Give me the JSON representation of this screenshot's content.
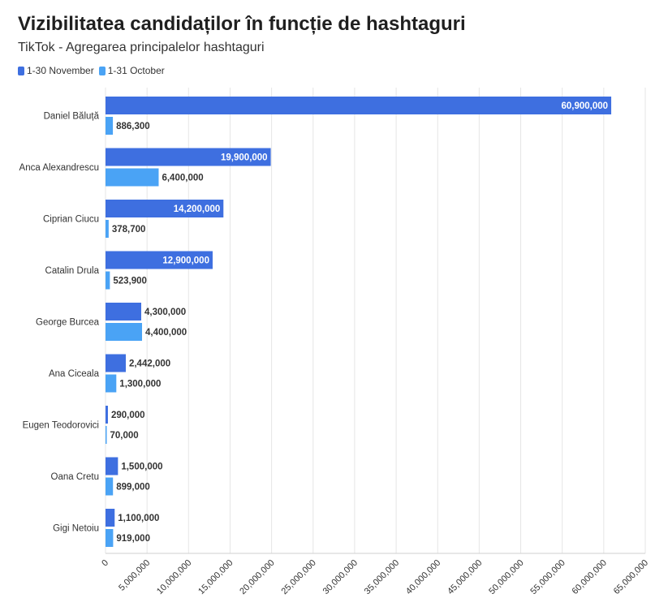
{
  "header": {
    "title": "Vizibilitatea candidaților în funcție de hashtaguri",
    "subtitle": "TikTok - Agregarea principalelor hashtaguri"
  },
  "colors": {
    "november": "#3e6fe0",
    "october": "#4aa3f5",
    "grid": "#e6e6e6"
  },
  "chart_data": {
    "type": "bar",
    "orientation": "horizontal",
    "title": "Vizibilitatea candidaților în funcție de hashtaguri",
    "subtitle": "TikTok - Agregarea principalelor hashtaguri",
    "categories": [
      "Daniel Băluță",
      "Anca Alexandrescu",
      "Ciprian Ciucu",
      "Catalin Drula",
      "George Burcea",
      "Ana Ciceala",
      "Eugen Teodorovici",
      "Oana Cretu",
      "Gigi Netoiu"
    ],
    "series": [
      {
        "name": "1-30 November",
        "values": [
          60900000,
          19900000,
          14200000,
          12900000,
          4300000,
          2442000,
          290000,
          1500000,
          1100000
        ],
        "labels": [
          "60,900,000",
          "19,900,000",
          "14,200,000",
          "12,900,000",
          "4,300,000",
          "2,442,000",
          "290,000",
          "1,500,000",
          "1,100,000"
        ]
      },
      {
        "name": "1-31 October",
        "values": [
          886300,
          6400000,
          378700,
          523900,
          4400000,
          1300000,
          70000,
          899000,
          919000
        ],
        "labels": [
          "886,300",
          "6,400,000",
          "378,700",
          "523,900",
          "4,400,000",
          "1,300,000",
          "70,000",
          "899,000",
          "919,000"
        ]
      }
    ],
    "xlim": [
      0,
      65000000
    ],
    "x_ticks": [
      0,
      5000000,
      10000000,
      15000000,
      20000000,
      25000000,
      30000000,
      35000000,
      40000000,
      45000000,
      50000000,
      55000000,
      60000000,
      65000000
    ],
    "x_tick_labels": [
      "0",
      "5,000,000",
      "10,000,000",
      "15,000,000",
      "20,000,000",
      "25,000,000",
      "30,000,000",
      "35,000,000",
      "40,000,000",
      "45,000,000",
      "50,000,000",
      "55,000,000",
      "60,000,000",
      "65,000,000"
    ],
    "grid": true,
    "legend_position": "top-left"
  }
}
